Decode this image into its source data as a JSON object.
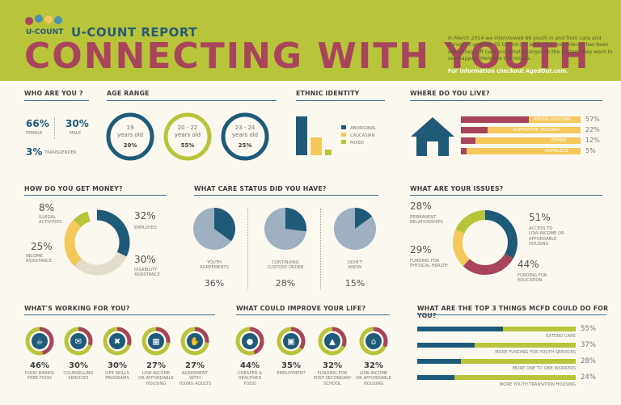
{
  "header": {
    "logo_text": "U-COUNT",
    "brand": "U-COUNT REPORT",
    "title": "CONNECTING WITH YOUTH",
    "intro": "In March 2014 we interviewed 66 youth in and from care and surveyed another 45 to find out what their experience has been since they left care and what changes to the system they want to see happen. Here are the results.",
    "link": "For information checkout AgedOut.com."
  },
  "colors": {
    "blue": "#1f5a78",
    "green": "#b8c43a",
    "yellow": "#f4c85c",
    "maroon": "#a8455c",
    "grey": "#9fb0c0",
    "beige": "#e4dccb"
  },
  "who": {
    "title": "WHO ARE YOU ?",
    "female_pct": "66%",
    "female_label": "FEMALE",
    "male_pct": "30%",
    "male_label": "MALE",
    "trans_pct": "3%",
    "trans_label": "TRANSGENDER"
  },
  "age": {
    "title": "AGE RANGE",
    "items": [
      {
        "range": "19",
        "unit": "years old",
        "pct": "20%",
        "value": 20
      },
      {
        "range": "20 - 22",
        "unit": "years old",
        "pct": "55%",
        "value": 55
      },
      {
        "range": "23 - 24",
        "unit": "years old",
        "pct": "25%",
        "value": 25
      }
    ]
  },
  "ethnic": {
    "title": "ETHNIC IDENTITY",
    "legend": [
      "ABORIGINAL",
      "CAUCASIAN",
      "MIXED"
    ],
    "values": [
      56,
      26,
      8
    ]
  },
  "live": {
    "title": "WHERE DO YOU LIVE?",
    "items": [
      {
        "label": "RENTAL HOUSING",
        "pct": "57%",
        "value": 57
      },
      {
        "label": "SUPPORTIVE HOUSING",
        "pct": "22%",
        "value": 22
      },
      {
        "label": "OTHER",
        "pct": "12%",
        "value": 12
      },
      {
        "label": "HOMELESS",
        "pct": "5%",
        "value": 5
      }
    ]
  },
  "money": {
    "title": "HOW DO YOU GET MONEY?",
    "illegal_pct": "8%",
    "illegal_label1": "ILLEGAL",
    "illegal_label2": "ACTIVITIES",
    "employed_pct": "32%",
    "employed_label": "EMPLOYED",
    "income_pct": "25%",
    "income_label1": "INCOME",
    "income_label2": "ASSISTANCE",
    "disability_pct": "30%",
    "disability_label1": "DISABILITY",
    "disability_label2": "ASSISTANCE",
    "values": [
      32,
      30,
      25,
      8
    ]
  },
  "care": {
    "title": "WHAT CARE STATUS DID YOU HAVE?",
    "items": [
      {
        "label1": "YOUTH",
        "label2": "AGREEMENTS",
        "pct": "36%",
        "value": 36
      },
      {
        "label1": "CONTINUING",
        "label2": "CUSTODY ORDER",
        "pct": "28%",
        "value": 28
      },
      {
        "label1": "DIDN'T",
        "label2": "KNOW",
        "pct": "15%",
        "value": 15
      }
    ]
  },
  "issues": {
    "title": "WHAT ARE YOUR ISSUES?",
    "perm_pct": "28%",
    "perm_label1": "PERMANENT",
    "perm_label2": "RELATIONSHIPS",
    "low_pct": "51%",
    "low_label1": "ACCESS TO",
    "low_label2": "LOW-INCOME OR",
    "low_label3": "AFFORDABLE",
    "low_label4": "HOUSING",
    "health_pct": "29%",
    "health_label1": "FUNDING FOR",
    "health_label2": "PHYSICAL HEALTH",
    "edu_pct": "44%",
    "edu_label1": "FUNDING FOR",
    "edu_label2": "EDUCATION",
    "values": [
      51,
      44,
      29,
      28
    ]
  },
  "working": {
    "title": "WHAT'S WORKING FOR YOU?",
    "items": [
      {
        "icon": "food-icon",
        "glyph": "☕",
        "pct": "46%",
        "value": 46,
        "label1": "FOOD BANKS/",
        "label2": "FREE FOOD",
        "label3": ""
      },
      {
        "icon": "speech-icon",
        "glyph": "✉",
        "pct": "30%",
        "value": 30,
        "label1": "COUNSELLING",
        "label2": "SERVICES",
        "label3": ""
      },
      {
        "icon": "utensils-icon",
        "glyph": "✖",
        "pct": "30%",
        "value": 30,
        "label1": "LIFE SKILLS",
        "label2": "PROGRAMS",
        "label3": ""
      },
      {
        "icon": "building-icon",
        "glyph": "▦",
        "pct": "27%",
        "value": 27,
        "label1": "LOW-INCOME",
        "label2": "OR AFFORDABLE",
        "label3": "HOUSING"
      },
      {
        "icon": "handshake-icon",
        "glyph": "✋",
        "pct": "27%",
        "value": 27,
        "label1": "AGREEMENT",
        "label2": "WITH",
        "label3": "YOUNG ADULTS"
      }
    ]
  },
  "improve": {
    "title": "WHAT COULD IMPROVE YOUR LIFE?",
    "items": [
      {
        "icon": "apple-icon",
        "glyph": "●",
        "pct": "44%",
        "value": 44,
        "label1": "CHEAPER &",
        "label2": "HEALTHIER",
        "label3": "FOOD"
      },
      {
        "icon": "briefcase-icon",
        "glyph": "▣",
        "pct": "35%",
        "value": 35,
        "label1": "EMPLOYMENT",
        "label2": "",
        "label3": ""
      },
      {
        "icon": "graduation-cap-icon",
        "glyph": "▲",
        "pct": "32%",
        "value": 32,
        "label1": "FUNDING FOR",
        "label2": "POST-SECONDARY",
        "label3": "SCHOOL"
      },
      {
        "icon": "house-icon",
        "glyph": "⌂",
        "pct": "32%",
        "value": 32,
        "label1": "LOW-INCOME",
        "label2": "OR AFFORDABLE",
        "label3": "HOUSING"
      }
    ]
  },
  "mcfd": {
    "title": "WHAT ARE THE TOP 3 THINGS MCFD COULD DO FOR YOU?",
    "items": [
      {
        "label": "EXTEND CARE",
        "pct": "55%",
        "value": 55
      },
      {
        "label": "MORE FUNDING FOR YOUTH SERVICES",
        "pct": "37%",
        "value": 37
      },
      {
        "label": "MORE ONE TO ONE WORKERS",
        "pct": "28%",
        "value": 28
      },
      {
        "label": "MORE YOUTH TRANSITION HOUSING",
        "pct": "24%",
        "value": 24
      }
    ]
  }
}
